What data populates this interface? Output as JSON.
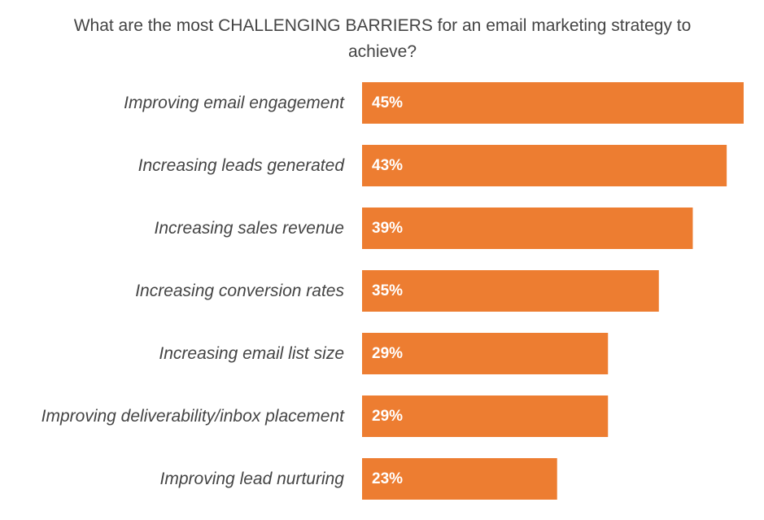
{
  "chart_data": {
    "type": "bar",
    "orientation": "horizontal",
    "title": "What are the most CHALLENGING BARRIERS for an email marketing strategy to achieve?",
    "categories": [
      "Improving email engagement",
      "Increasing leads generated",
      "Increasing sales revenue",
      "Increasing conversion rates",
      "Increasing email list size",
      "Improving deliverability/inbox placement",
      "Improving lead nurturing"
    ],
    "values": [
      45,
      43,
      39,
      35,
      29,
      29,
      23
    ],
    "value_labels": [
      "45%",
      "43%",
      "39%",
      "35%",
      "29%",
      "29%",
      "23%"
    ],
    "unit": "%",
    "bar_color": "#ED7D31",
    "xlim": [
      0,
      45
    ],
    "grid": false,
    "legend": "none"
  }
}
